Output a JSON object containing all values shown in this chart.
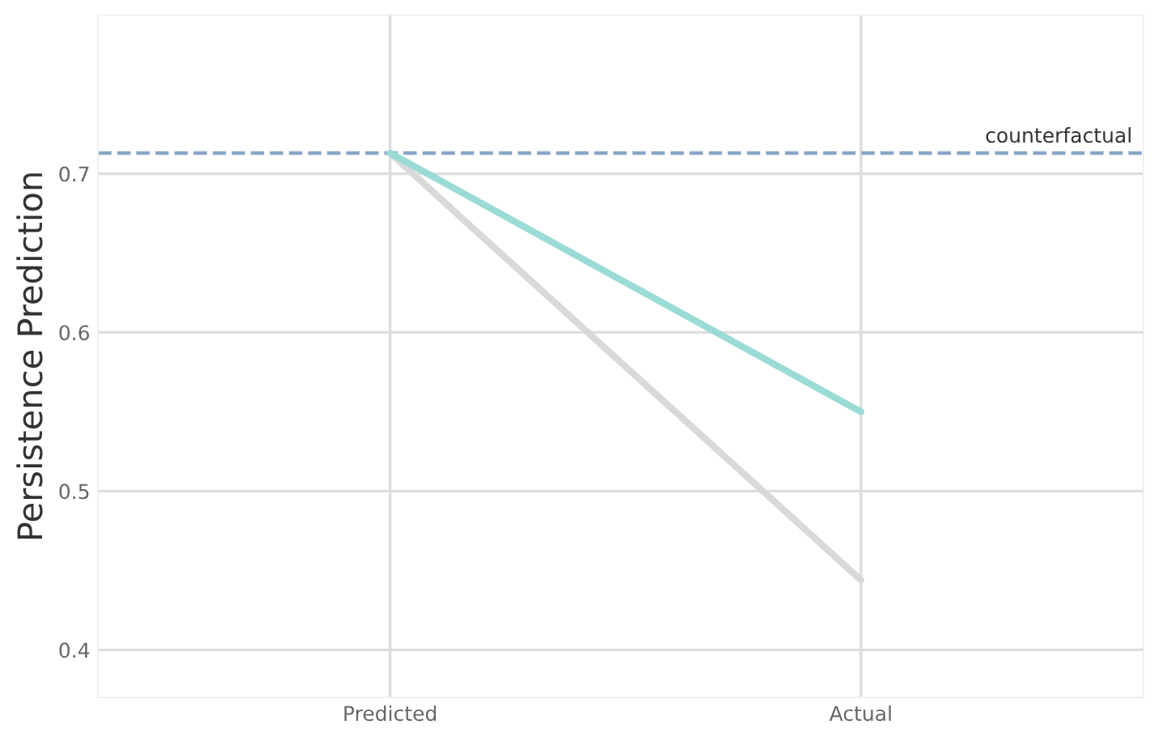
{
  "chart_data": {
    "type": "line",
    "ylabel": "Persistence Prediction",
    "categories": [
      "Predicted",
      "Actual"
    ],
    "series": [
      {
        "color": "#d9d9d9",
        "values": [
          0.713,
          0.444
        ]
      },
      {
        "color": "#9adbd6",
        "values": [
          0.713,
          0.55
        ]
      }
    ],
    "ylim": [
      0.37,
      0.8
    ],
    "yticks": [
      0.4,
      0.5,
      0.6,
      0.7
    ],
    "grid": true,
    "marker": "none",
    "line_style": "solid",
    "ref_lines": [
      {
        "axis": "y",
        "value": 0.713,
        "label": "counterfactual",
        "color": "#8aa6c8",
        "line_style": "dashed"
      }
    ]
  }
}
